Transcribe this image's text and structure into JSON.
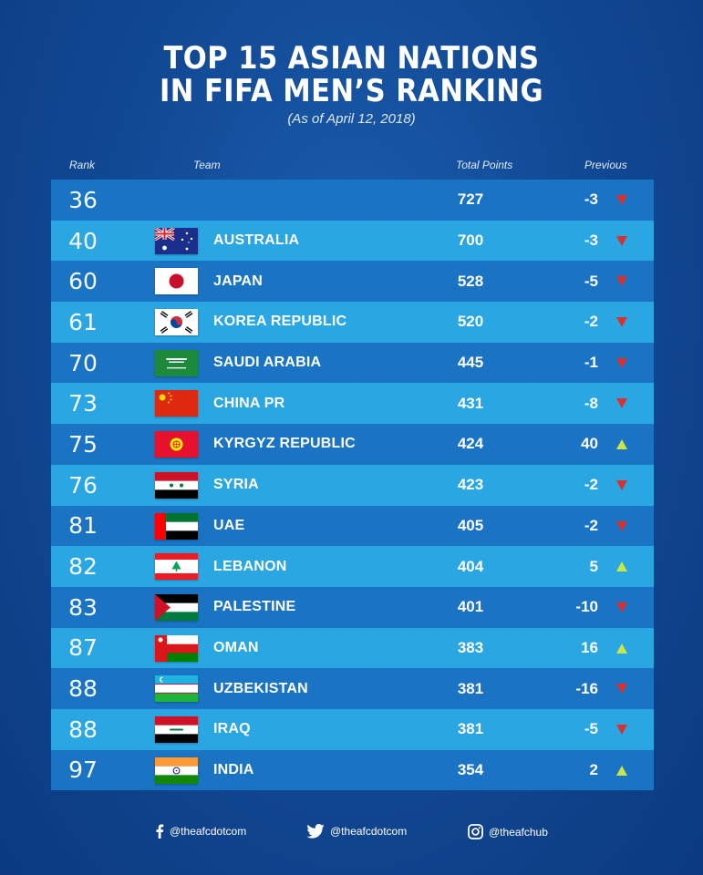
{
  "title": {
    "line1": "TOP 15 ASIAN NATIONS",
    "line2": "IN FIFA MEN’S  RANKING",
    "subtitle": "(As of April 12, 2018)"
  },
  "headers": {
    "rank": "Rank",
    "team": "Team",
    "points": "Total Points",
    "previous": "Previous"
  },
  "colors": {
    "background": "#124a96",
    "row_dark": "#1b73c4",
    "row_light": "#2aa6e2",
    "arrow_up": "#c8e646",
    "arrow_down": "#d9322e"
  },
  "rows": [
    {
      "rank": "36",
      "team": "",
      "flag": "none",
      "points": "727",
      "change": "-3",
      "direction": "down"
    },
    {
      "rank": "40",
      "team": "AUSTRALIA",
      "flag": "australia-flag",
      "points": "700",
      "change": "-3",
      "direction": "down"
    },
    {
      "rank": "60",
      "team": "JAPAN",
      "flag": "japan-flag",
      "points": "528",
      "change": "-5",
      "direction": "down"
    },
    {
      "rank": "61",
      "team": "KOREA REPUBLIC",
      "flag": "korea-flag",
      "points": "520",
      "change": "-2",
      "direction": "down"
    },
    {
      "rank": "70",
      "team": "SAUDI ARABIA",
      "flag": "saudi-arabia-flag",
      "points": "445",
      "change": "-1",
      "direction": "down"
    },
    {
      "rank": "73",
      "team": "CHINA PR",
      "flag": "china-flag",
      "points": "431",
      "change": "-8",
      "direction": "down"
    },
    {
      "rank": "75",
      "team": "KYRGYZ REPUBLIC",
      "flag": "kyrgyzstan-flag",
      "points": "424",
      "change": "40",
      "direction": "up"
    },
    {
      "rank": "76",
      "team": "SYRIA",
      "flag": "syria-flag",
      "points": "423",
      "change": "-2",
      "direction": "down"
    },
    {
      "rank": "81",
      "team": "UAE",
      "flag": "uae-flag",
      "points": "405",
      "change": "-2",
      "direction": "down"
    },
    {
      "rank": "82",
      "team": "LEBANON",
      "flag": "lebanon-flag",
      "points": "404",
      "change": "5",
      "direction": "up"
    },
    {
      "rank": "83",
      "team": "PALESTINE",
      "flag": "palestine-flag",
      "points": "401",
      "change": "-10",
      "direction": "down"
    },
    {
      "rank": "87",
      "team": "OMAN",
      "flag": "oman-flag",
      "points": "383",
      "change": "16",
      "direction": "up"
    },
    {
      "rank": "88",
      "team": "UZBEKISTAN",
      "flag": "uzbekistan-flag",
      "points": "381",
      "change": "-16",
      "direction": "down"
    },
    {
      "rank": "88",
      "team": "IRAQ",
      "flag": "iraq-flag",
      "points": "381",
      "change": "-5",
      "direction": "down"
    },
    {
      "rank": "97",
      "team": "INDIA",
      "flag": "india-flag",
      "points": "354",
      "change": "2",
      "direction": "up"
    }
  ],
  "footer": {
    "facebook": {
      "icon": "facebook-icon",
      "handle": "@theafcdotcom"
    },
    "twitter": {
      "icon": "twitter-icon",
      "handle": "@theafcdotcom"
    },
    "instagram": {
      "icon": "instagram-icon",
      "handle": "@theafchub"
    }
  }
}
